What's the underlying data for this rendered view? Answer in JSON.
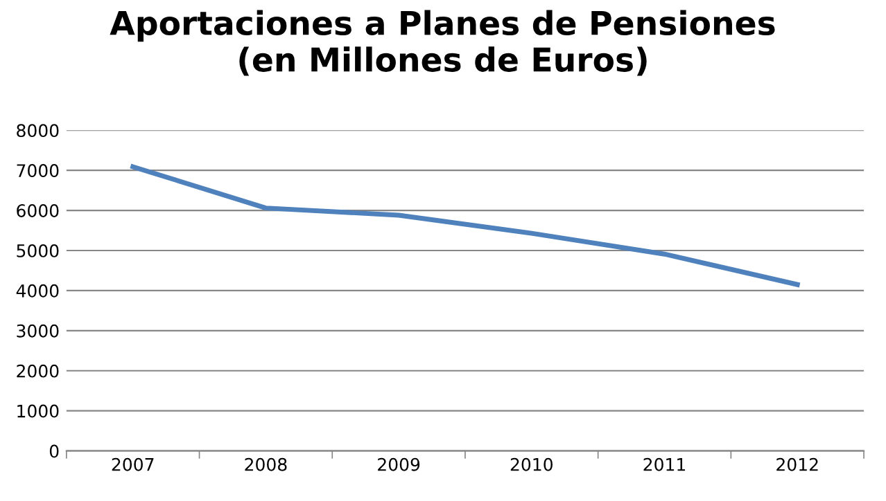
{
  "chart_data": {
    "type": "line",
    "title": "Aportaciones a Planes de Pensiones\n(en Millones de Euros)",
    "categories": [
      "2007",
      "2008",
      "2009",
      "2010",
      "2011",
      "2012"
    ],
    "series": [
      {
        "color": "#4f81bd",
        "values": [
          7090,
          6060,
          5880,
          5430,
          4910,
          4150
        ]
      }
    ],
    "ylim": [
      0,
      8000
    ],
    "yticks": [
      0,
      1000,
      2000,
      3000,
      4000,
      5000,
      6000,
      7000,
      8000
    ],
    "grid": "y",
    "marker": "none",
    "line_style": "solid"
  }
}
